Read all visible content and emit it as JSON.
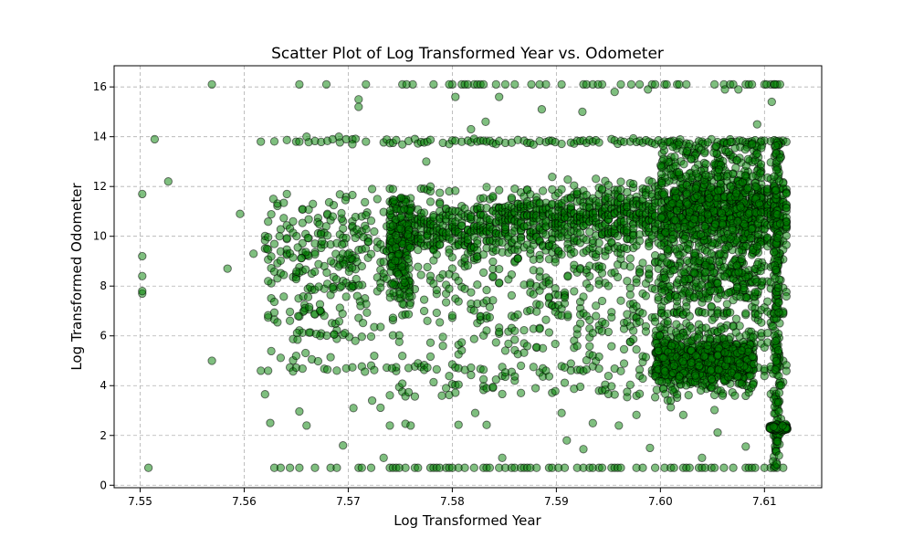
{
  "chart_data": {
    "type": "scatter",
    "title": "Scatter Plot of Log Transformed Year vs. Odometer",
    "xlabel": "Log Transformed Year",
    "ylabel": "Log Transformed Odometer",
    "xlim": [
      7.5475,
      7.6155
    ],
    "ylim": [
      -0.1,
      16.85
    ],
    "xticks": [
      "7.55",
      "7.56",
      "7.57",
      "7.58",
      "7.59",
      "7.60",
      "7.61"
    ],
    "yticks": [
      "0",
      "2",
      "4",
      "6",
      "8",
      "10",
      "12",
      "14",
      "16"
    ],
    "grid": true,
    "legend": "none",
    "point_color": "#008000",
    "edge_color": "#000000",
    "point_alpha": 0.5,
    "series": [
      {
        "points": [
          [
            7.5502,
            11.7
          ],
          [
            7.5502,
            9.2
          ],
          [
            7.5502,
            8.4
          ],
          [
            7.5502,
            7.7
          ],
          [
            7.5502,
            7.8
          ],
          [
            7.5508,
            0.7
          ],
          [
            7.5514,
            13.9
          ],
          [
            7.5527,
            12.2
          ],
          [
            7.5569,
            16.1
          ],
          [
            7.5569,
            5.0
          ],
          [
            7.5584,
            8.7
          ],
          [
            7.5596,
            10.9
          ],
          [
            7.5609,
            9.3
          ],
          [
            7.5616,
            13.8
          ],
          [
            7.5616,
            4.6
          ],
          [
            7.5622,
            9.5
          ],
          [
            7.5623,
            8.2
          ],
          [
            7.5625,
            2.5
          ],
          [
            7.5628,
            11.5
          ],
          [
            7.5634,
            10.0
          ],
          [
            7.5641,
            11.7
          ],
          [
            7.5647,
            10.6
          ],
          [
            7.5653,
            16.1
          ],
          [
            7.5653,
            13.8
          ],
          [
            7.5653,
            0.7
          ],
          [
            7.566,
            14.0
          ],
          [
            7.5666,
            11.3
          ],
          [
            7.5679,
            16.1
          ],
          [
            7.5685,
            13.9
          ],
          [
            7.5691,
            14.0
          ],
          [
            7.5698,
            13.9
          ],
          [
            7.5704,
            13.7
          ],
          [
            7.571,
            15.5
          ],
          [
            7.571,
            15.2
          ],
          [
            7.5717,
            16.1
          ],
          [
            7.5717,
            13.8
          ],
          [
            7.5723,
            11.9
          ],
          [
            7.5723,
            3.4
          ],
          [
            7.5734,
            1.1
          ],
          [
            7.5742,
            4.7
          ],
          [
            7.5756,
            16.1
          ],
          [
            7.5762,
            16.1
          ],
          [
            7.5775,
            13.0
          ],
          [
            7.5797,
            16.1
          ],
          [
            7.5803,
            15.6
          ],
          [
            7.5818,
            14.3
          ],
          [
            7.5832,
            14.6
          ],
          [
            7.5845,
            15.6
          ],
          [
            7.586,
            16.1
          ],
          [
            7.5876,
            16.1
          ],
          [
            7.5886,
            15.1
          ],
          [
            7.5905,
            16.1
          ],
          [
            7.5925,
            15.0
          ],
          [
            7.594,
            16.1
          ],
          [
            7.5956,
            15.8
          ],
          [
            7.5972,
            16.1
          ],
          [
            7.5988,
            15.9
          ],
          [
            7.6006,
            16.1
          ],
          [
            7.6018,
            16.1
          ],
          [
            7.6052,
            16.1
          ],
          [
            7.6062,
            15.9
          ],
          [
            7.6075,
            15.9
          ],
          [
            7.6093,
            14.5
          ],
          [
            7.6102,
            16.1
          ],
          [
            7.6107,
            15.4
          ],
          [
            7.611,
            16.1
          ],
          [
            7.579,
            3.6
          ],
          [
            7.576,
            2.4
          ],
          [
            7.5695,
            1.6
          ],
          [
            7.566,
            2.4
          ],
          [
            7.5705,
            3.1
          ],
          [
            7.588,
            3.9
          ],
          [
            7.591,
            1.8
          ],
          [
            7.596,
            2.4
          ],
          [
            7.599,
            1.5
          ],
          [
            7.601,
            3.4
          ],
          [
            7.604,
            1.1
          ],
          [
            7.5848,
            1.1
          ],
          [
            7.5822,
            2.9
          ],
          [
            7.574,
            2.4
          ]
        ]
      }
    ]
  }
}
